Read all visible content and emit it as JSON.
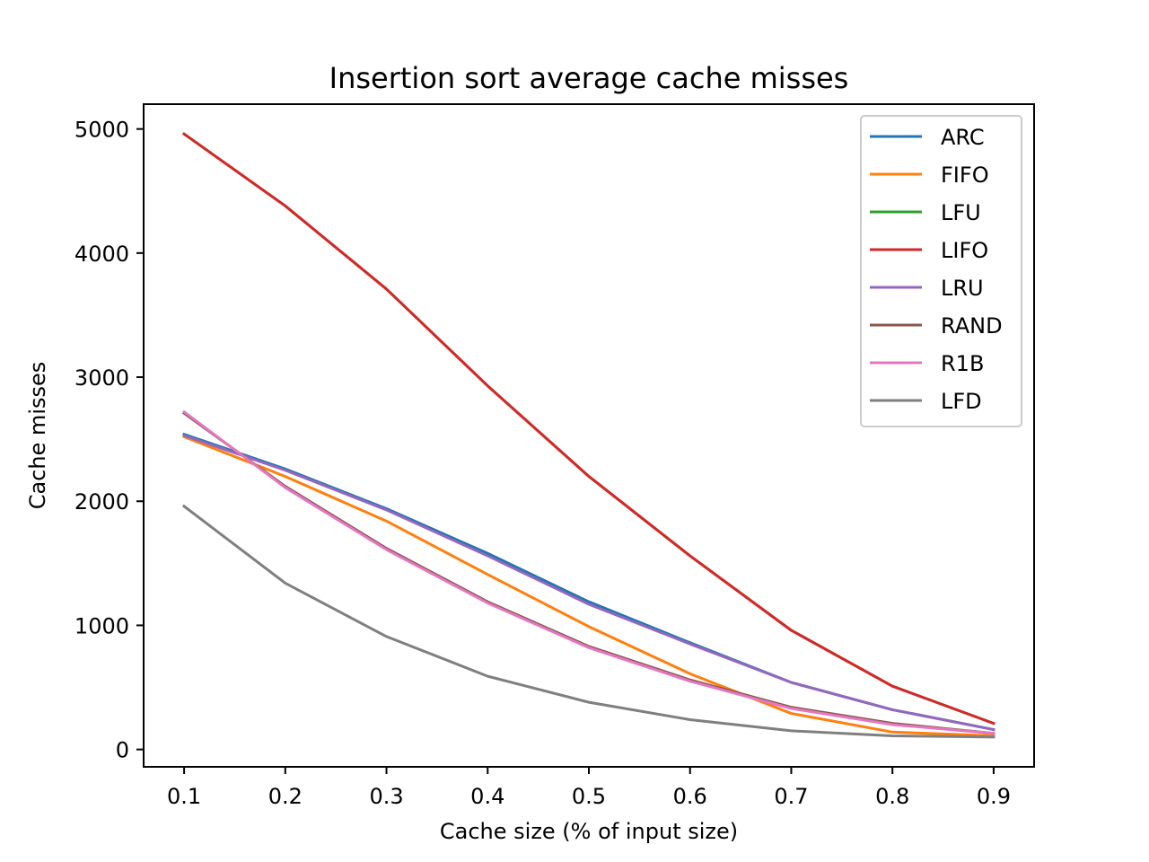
{
  "chart_data": {
    "type": "line",
    "title": "Insertion sort average cache misses",
    "xlabel": "Cache size (% of input size)",
    "ylabel": "Cache misses",
    "x": [
      0.1,
      0.2,
      0.3,
      0.4,
      0.5,
      0.6,
      0.7,
      0.8,
      0.9
    ],
    "x_tick_labels": [
      "0.1",
      "0.2",
      "0.3",
      "0.4",
      "0.5",
      "0.6",
      "0.7",
      "0.8",
      "0.9"
    ],
    "xlim": [
      0.06,
      0.94
    ],
    "y_ticks": [
      0,
      1000,
      2000,
      3000,
      4000,
      5000
    ],
    "y_tick_labels": [
      "0",
      "1000",
      "2000",
      "3000",
      "4000",
      "5000"
    ],
    "ylim": [
      -140,
      5200
    ],
    "grid": false,
    "legend_position": "top-right",
    "series": [
      {
        "name": "ARC",
        "color": "#1f77b4",
        "values": [
          2540,
          2260,
          1940,
          1580,
          1190,
          860,
          540,
          320,
          160
        ]
      },
      {
        "name": "FIFO",
        "color": "#ff7f0e",
        "values": [
          2520,
          2200,
          1840,
          1410,
          990,
          610,
          290,
          140,
          110
        ]
      },
      {
        "name": "LFU",
        "color": "#2ca02c",
        "values": [
          4960,
          4380,
          3710,
          2930,
          2200,
          1560,
          960,
          510,
          210
        ]
      },
      {
        "name": "LIFO",
        "color": "#d62728",
        "values": [
          4960,
          4380,
          3710,
          2930,
          2200,
          1560,
          960,
          510,
          210
        ]
      },
      {
        "name": "LRU",
        "color": "#9467bd",
        "values": [
          2530,
          2250,
          1930,
          1560,
          1170,
          850,
          540,
          320,
          160
        ]
      },
      {
        "name": "RAND",
        "color": "#8c564b",
        "values": [
          2710,
          2120,
          1620,
          1190,
          830,
          560,
          340,
          210,
          130
        ]
      },
      {
        "name": "R1B",
        "color": "#e377c2",
        "values": [
          2720,
          2110,
          1610,
          1180,
          820,
          550,
          330,
          200,
          130
        ]
      },
      {
        "name": "LFD",
        "color": "#7f7f7f",
        "values": [
          1960,
          1340,
          910,
          590,
          380,
          240,
          150,
          110,
          100
        ]
      }
    ]
  }
}
